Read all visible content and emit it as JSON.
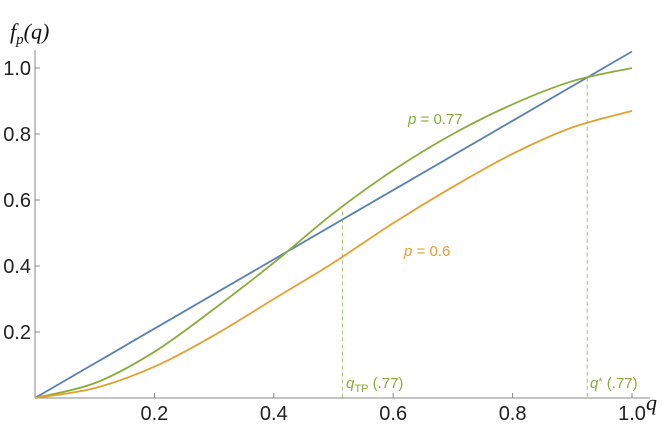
{
  "chart_data": {
    "type": "line",
    "ylabel_parts": {
      "base": "f",
      "sub": "p",
      "arg": "(q)"
    },
    "xlabel": "q",
    "xlim": [
      0,
      1.0
    ],
    "ylim": [
      0,
      1.0
    ],
    "x_ticks": [
      0.2,
      0.4,
      0.6,
      0.8,
      1.0
    ],
    "x_tick_labels": [
      "0.2",
      "0.4",
      "0.6",
      "0.8",
      "1.0"
    ],
    "y_ticks": [
      0.2,
      0.4,
      0.6,
      0.8,
      1.0
    ],
    "y_tick_labels": [
      "0.2",
      "0.4",
      "0.6",
      "0.8",
      "1.0"
    ],
    "grid": false,
    "series": [
      {
        "key": "identity",
        "color": "#5b7fb7",
        "x": [
          0,
          1.0
        ],
        "y": [
          0,
          1.05
        ]
      },
      {
        "key": "p077",
        "color": "#8aac3a",
        "label_parts": {
          "var": "p",
          "rest": " = 0.77"
        },
        "x": [
          0,
          0.1,
          0.2,
          0.3,
          0.4,
          0.5,
          0.6,
          0.7,
          0.8,
          0.9,
          1.0
        ],
        "y": [
          0,
          0.045,
          0.14,
          0.27,
          0.41,
          0.56,
          0.69,
          0.8,
          0.89,
          0.96,
          1.0
        ]
      },
      {
        "key": "p06",
        "color": "#e3a030",
        "label_parts": {
          "var": "p",
          "rest": " = 0.6"
        },
        "x": [
          0,
          0.1,
          0.2,
          0.3,
          0.4,
          0.5,
          0.6,
          0.7,
          0.8,
          0.9,
          1.0
        ],
        "y": [
          0,
          0.03,
          0.095,
          0.19,
          0.3,
          0.41,
          0.53,
          0.64,
          0.74,
          0.82,
          0.87
        ]
      }
    ],
    "markers": [
      {
        "key": "qtp",
        "x": 0.515,
        "y": 0.565,
        "color": "#8aac3a",
        "label_parts": {
          "var": "q",
          "sub": "TP",
          "rest": " (.77)"
        }
      },
      {
        "key": "qstar",
        "x": 0.925,
        "y": 0.97,
        "color": "#8aac3a",
        "label_parts": {
          "var": "q",
          "sub": "*",
          "rest": " (.77)"
        }
      }
    ]
  }
}
